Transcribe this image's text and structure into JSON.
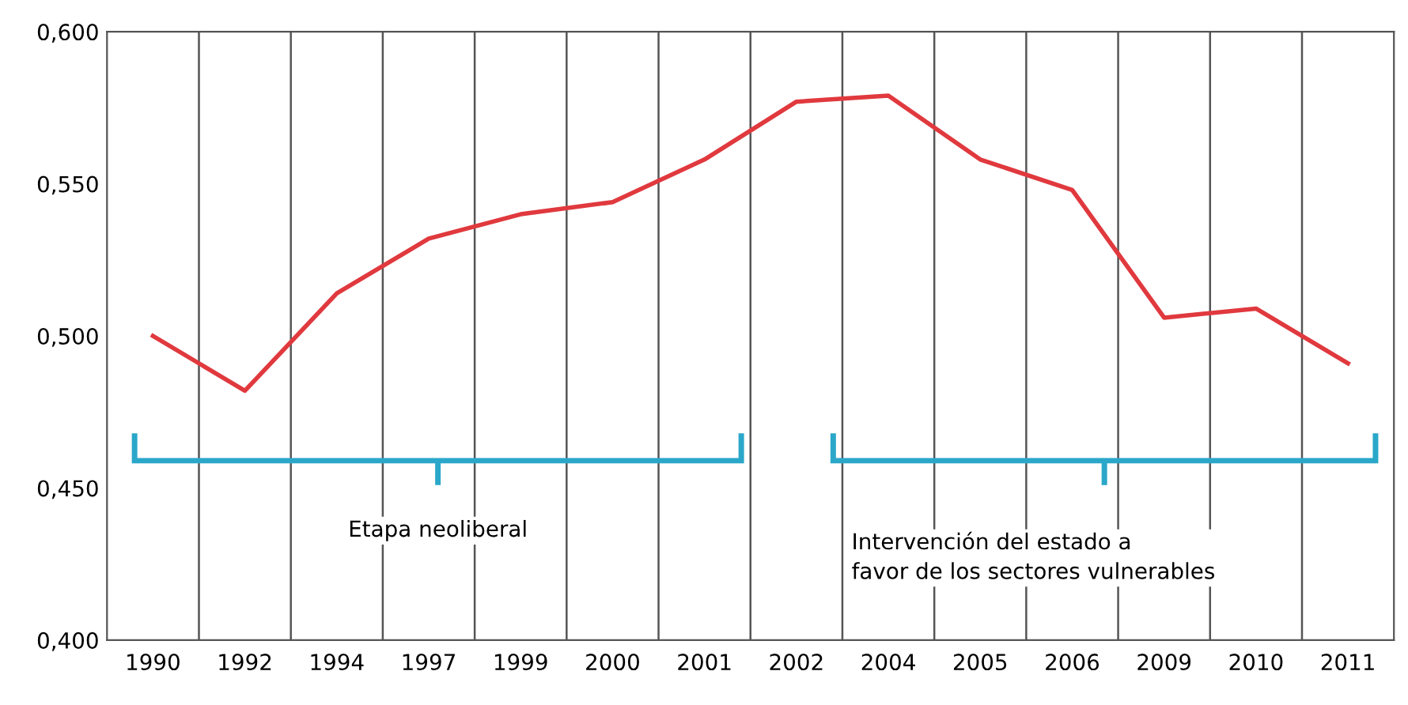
{
  "chart_data": {
    "type": "line",
    "categories": [
      "1990",
      "1992",
      "1994",
      "1997",
      "1999",
      "2000",
      "2001",
      "2002",
      "2004",
      "2005",
      "2006",
      "2009",
      "2010",
      "2011"
    ],
    "series": [
      {
        "color": "#e0393e",
        "values": [
          0.5,
          0.482,
          0.514,
          0.532,
          0.54,
          0.544,
          0.558,
          0.577,
          0.579,
          0.558,
          0.548,
          0.506,
          0.509,
          0.491
        ]
      }
    ],
    "ylim": [
      0.4,
      0.6
    ],
    "yticks": [
      {
        "value": 0.4,
        "label": "0,400"
      },
      {
        "value": 0.45,
        "label": "0,450"
      },
      {
        "value": 0.5,
        "label": "0,500"
      },
      {
        "value": 0.55,
        "label": "0,550"
      },
      {
        "value": 0.6,
        "label": "0,600"
      }
    ],
    "grid": "x",
    "marker": "none",
    "line_style": "solid",
    "annotations": [
      "Etapa neoliberal",
      "Intervención del estado a\nfavor de los sectores vulnerables"
    ]
  }
}
